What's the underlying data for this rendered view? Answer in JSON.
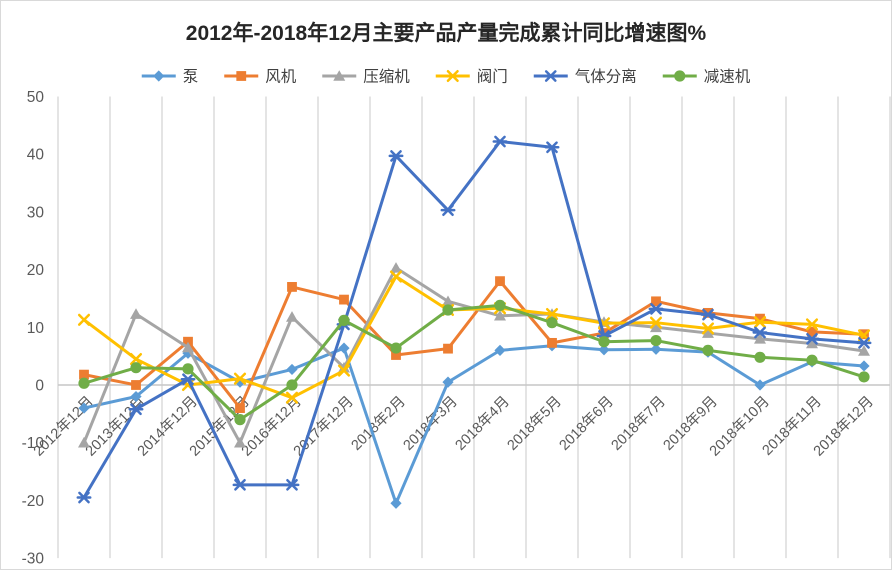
{
  "title": "2012年-2018年12月主要产品产量完成累计同比增速图%",
  "chart_data": {
    "type": "line",
    "title": "2012年-2018年12月主要产品产量完成累计同比增速图%",
    "xlabel": "",
    "ylabel": "",
    "ylim": [
      -30,
      50
    ],
    "y_ticks": [
      50,
      40,
      30,
      20,
      10,
      0,
      -10,
      -20,
      -30
    ],
    "grid": "vertical-only-plus-zero-line",
    "legend_position": "top",
    "categories": [
      "2012年12月",
      "2013年12月",
      "2014年12月",
      "2015年12月",
      "2016年12月",
      "2017年12月",
      "2018年2月",
      "2018年3月",
      "2018年4月",
      "2018年5月",
      "2018年6月",
      "2018年7月",
      "2018年9月",
      "2018年10月",
      "2018年11月",
      "2018年12月"
    ],
    "series": [
      {
        "name": "泵",
        "marker": "diamond",
        "color": "#5B9BD5",
        "values": [
          -4,
          -2,
          5.5,
          0.5,
          2.7,
          6.4,
          -20.5,
          0.5,
          6,
          6.8,
          6.1,
          6.2,
          5.7,
          0,
          4,
          3.3
        ]
      },
      {
        "name": "风机",
        "marker": "square",
        "color": "#ED7D31",
        "values": [
          1.8,
          0,
          7.5,
          -4,
          17,
          14.8,
          5.2,
          6.3,
          18,
          7.3,
          9,
          14.5,
          12.5,
          11.5,
          9.2,
          8.8
        ]
      },
      {
        "name": "压缩机",
        "marker": "triangle",
        "color": "#A5A5A5",
        "values": [
          -10,
          12.3,
          6.5,
          -10,
          11.8,
          3,
          20.3,
          14.5,
          12,
          12.3,
          10.9,
          10,
          9,
          8,
          7.2,
          5.9
        ]
      },
      {
        "name": "阀门",
        "marker": "x",
        "color": "#FFC000",
        "values": [
          11.3,
          4.5,
          0,
          1.1,
          -2.2,
          2.5,
          18.8,
          13,
          13.3,
          12.3,
          10.7,
          10.8,
          9.8,
          10.9,
          10.5,
          8.6
        ]
      },
      {
        "name": "气体分离",
        "marker": "asterisk",
        "color": "#4472C4",
        "values": [
          -19.5,
          -4.2,
          1,
          -17.3,
          -17.3,
          10.5,
          39.7,
          30.3,
          42.2,
          41.2,
          8.5,
          13.2,
          12.2,
          9.1,
          8,
          7.3
        ]
      },
      {
        "name": "减速机",
        "marker": "circle",
        "color": "#70AD47",
        "values": [
          0.3,
          3,
          2.8,
          -6,
          0,
          11.2,
          6.4,
          13,
          13.8,
          10.8,
          7.5,
          7.7,
          6,
          4.8,
          4.3,
          1.4
        ]
      }
    ]
  },
  "style_colors": {
    "grid": "#D9D9D9",
    "zero_line": "#C6C6C6",
    "axis_text": "#595959",
    "title_text": "#262626",
    "legend_text": "#404040",
    "border": "#D9D9D9",
    "background": "#FFFFFF"
  }
}
